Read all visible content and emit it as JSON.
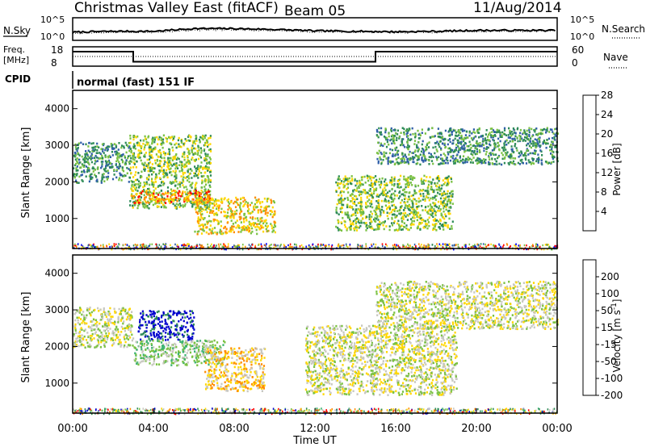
{
  "header": {
    "title": "Christmas Valley East (fitACF)",
    "beam": "Beam 05",
    "date": "11/Aug/2014"
  },
  "noise_panel": {
    "left_label": "N.Sky",
    "left_ticks": [
      "10^5",
      "10^0"
    ],
    "right_ticks": [
      "10^5",
      "10^0"
    ],
    "right_label": "N.Search"
  },
  "freq_panel": {
    "left_label_1": "Freq.",
    "left_label_2": "[MHz]",
    "left_ticks": [
      "18",
      "8"
    ],
    "right_ticks": [
      "60",
      "0"
    ],
    "right_label": "Nave"
  },
  "cpid_panel": {
    "label": "CPID",
    "mode": "normal (fast) 151 IF"
  },
  "x_axis": {
    "title": "Time UT",
    "ticks": [
      "00:00",
      "04:00",
      "08:00",
      "12:00",
      "16:00",
      "20:00",
      "00:00"
    ]
  },
  "chart_data": [
    {
      "type": "line",
      "series": [
        {
          "name": "N.Sky",
          "values": [
            1.8,
            2.0,
            2.0,
            2.6,
            2.6,
            2.4,
            2.1,
            2.0,
            1.9,
            2.0,
            2.2,
            2.2
          ]
        },
        {
          "name": "N.Search",
          "values": [
            1.6,
            1.8,
            1.8,
            2.3,
            2.3,
            2.2,
            1.9,
            1.8,
            1.7,
            1.8,
            2.0,
            2.0
          ]
        }
      ],
      "x": [
        0,
        2,
        4,
        6,
        8,
        10,
        12,
        14,
        16,
        18,
        20,
        24
      ],
      "ylim": [
        0,
        5
      ]
    },
    {
      "type": "line",
      "series": [
        {
          "name": "Freq.",
          "x": [
            0,
            3,
            3,
            15,
            15,
            24
          ],
          "values": [
            15.5,
            15.5,
            10.3,
            10.3,
            15.5,
            15.5
          ]
        },
        {
          "name": "Nave",
          "x": [
            0,
            1,
            3,
            15,
            24
          ],
          "values": [
            30,
            30,
            30,
            30,
            30
          ]
        }
      ],
      "ylim": [
        8,
        18
      ]
    },
    {
      "type": "heatmap",
      "xlim": [
        0,
        24
      ],
      "ylim": [
        180,
        4500
      ],
      "ylabel": "Slant Range [km]",
      "yticks": [
        1000,
        2000,
        3000,
        4000
      ],
      "colorbar": {
        "label": "Power [dB]",
        "ticks": [
          "4",
          "8",
          "12",
          "16",
          "20",
          "24",
          "28"
        ],
        "colors": [
          "#0000ff",
          "#2f5fa8",
          "#2e8b57",
          "#7ac142",
          "#ffd700",
          "#ff8c00",
          "#ff0000"
        ]
      },
      "regions": [
        {
          "t0": 0.0,
          "t1": 2.8,
          "r0": 2000,
          "r1": 3100,
          "level": 2
        },
        {
          "t0": 2.8,
          "t1": 6.8,
          "r0": 1300,
          "r1": 3300,
          "level": 3
        },
        {
          "t0": 2.8,
          "t1": 6.8,
          "r0": 1450,
          "r1": 1800,
          "level": 5
        },
        {
          "t0": 6.0,
          "t1": 10.0,
          "r0": 600,
          "r1": 1600,
          "level": 4
        },
        {
          "t0": 13.0,
          "t1": 18.8,
          "r0": 700,
          "r1": 2200,
          "level": 3
        },
        {
          "t0": 15.0,
          "t1": 24.0,
          "r0": 2500,
          "r1": 3500,
          "level": 2
        }
      ]
    },
    {
      "type": "heatmap",
      "xlim": [
        0,
        24
      ],
      "ylim": [
        180,
        4500
      ],
      "ylabel": "Slant Range [km]",
      "yticks": [
        1000,
        2000,
        3000,
        4000
      ],
      "colorbar": {
        "label": "Velocity [m s^-1]",
        "ticks": [
          "200",
          "100",
          "50",
          "15",
          "-15",
          "-50",
          "-100",
          "-200"
        ],
        "colors": [
          "#0000cd",
          "#2e8b57",
          "#3cb371",
          "#7ac142",
          "#c8c8c0",
          "#ffd700",
          "#ff8c00",
          "#ff0000"
        ]
      },
      "regions": [
        {
          "t0": 0.0,
          "t1": 3.0,
          "r0": 2000,
          "r1": 3100,
          "level": 4
        },
        {
          "t0": 3.2,
          "t1": 6.0,
          "r0": 2200,
          "r1": 3000,
          "level": 0
        },
        {
          "t0": 3.0,
          "t1": 7.5,
          "r0": 1500,
          "r1": 2200,
          "level": 3
        },
        {
          "t0": 6.5,
          "t1": 9.5,
          "r0": 800,
          "r1": 2000,
          "level": 5
        },
        {
          "t0": 11.5,
          "t1": 19.0,
          "r0": 700,
          "r1": 2600,
          "level": 4
        },
        {
          "t0": 15.0,
          "t1": 24.0,
          "r0": 2500,
          "r1": 3800,
          "level": 4
        }
      ]
    }
  ]
}
